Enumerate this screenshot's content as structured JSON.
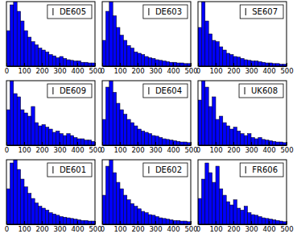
{
  "chart_data": [
    {
      "type": "histogram",
      "bins": [
        0,
        20,
        40,
        60,
        80,
        100,
        120,
        140,
        160,
        180,
        200,
        220,
        240,
        260,
        280,
        300,
        320,
        340,
        360,
        380,
        400,
        420,
        440,
        460,
        480,
        500
      ],
      "series": [
        {
          "name": "DE605",
          "color": "#0000ff",
          "values": [
            55,
            95,
            100,
            85,
            70,
            55,
            45,
            38,
            33,
            28,
            25,
            22,
            18,
            16,
            13,
            15,
            12,
            10,
            9,
            8,
            8,
            6,
            6,
            5,
            5
          ]
        }
      ],
      "xlim": [
        0,
        500
      ],
      "xticks": [
        0,
        100,
        200,
        300,
        400,
        500
      ],
      "ylim": [
        0,
        100
      ],
      "tick_labels": "x",
      "legend": "upper right"
    },
    {
      "type": "histogram",
      "bins": [
        0,
        20,
        40,
        60,
        80,
        100,
        120,
        140,
        160,
        180,
        200,
        220,
        240,
        260,
        280,
        300,
        320,
        340,
        360,
        380,
        400,
        420,
        440,
        460,
        480,
        500
      ],
      "series": [
        {
          "name": "DE603",
          "color": "#0000ff",
          "values": [
            40,
            85,
            100,
            78,
            60,
            48,
            40,
            32,
            28,
            22,
            20,
            18,
            15,
            13,
            12,
            10,
            9,
            8,
            7,
            6,
            6,
            5,
            5,
            4,
            4
          ]
        }
      ],
      "xlim": [
        0,
        500
      ],
      "xticks": [
        0,
        100,
        200,
        300,
        400,
        500
      ],
      "ylim": [
        0,
        100
      ],
      "tick_labels": "x",
      "legend": "upper right"
    },
    {
      "type": "histogram",
      "bins": [
        0,
        20,
        40,
        60,
        80,
        100,
        120,
        140,
        160,
        180,
        200,
        220,
        240,
        260,
        280,
        300,
        320,
        340,
        360,
        380,
        400,
        420,
        440,
        460,
        480,
        500
      ],
      "series": [
        {
          "name": "SE607",
          "color": "#0000ff",
          "values": [
            60,
            100,
            70,
            50,
            40,
            38,
            30,
            25,
            20,
            18,
            15,
            14,
            12,
            10,
            9,
            8,
            8,
            7,
            6,
            5,
            5,
            4,
            4,
            3,
            3
          ]
        }
      ],
      "xlim": [
        0,
        500
      ],
      "xticks": [
        0,
        100,
        200,
        300,
        400,
        500
      ],
      "ylim": [
        0,
        100
      ],
      "tick_labels": "x",
      "legend": "upper right"
    },
    {
      "type": "histogram",
      "bins": [
        0,
        20,
        40,
        60,
        80,
        100,
        120,
        140,
        160,
        180,
        200,
        220,
        240,
        260,
        280,
        300,
        320,
        340,
        360,
        380,
        400,
        420,
        440,
        460,
        480,
        500
      ],
      "series": [
        {
          "name": "DE609",
          "color": "#0000ff",
          "values": [
            55,
            100,
            80,
            75,
            55,
            50,
            45,
            60,
            35,
            30,
            32,
            28,
            25,
            20,
            22,
            18,
            15,
            18,
            15,
            12,
            10,
            10,
            8,
            8,
            6
          ]
        }
      ],
      "xlim": [
        0,
        500
      ],
      "xticks": [
        0,
        100,
        200,
        300,
        400,
        500
      ],
      "ylim": [
        0,
        100
      ],
      "tick_labels": "x",
      "legend": "upper right"
    },
    {
      "type": "histogram",
      "bins": [
        0,
        20,
        40,
        60,
        80,
        100,
        120,
        140,
        160,
        180,
        200,
        220,
        240,
        260,
        280,
        300,
        320,
        340,
        360,
        380,
        400,
        420,
        440,
        460,
        480,
        500
      ],
      "series": [
        {
          "name": "DE604",
          "color": "#0000ff",
          "values": [
            40,
            90,
            100,
            82,
            65,
            55,
            48,
            40,
            35,
            30,
            25,
            22,
            20,
            18,
            15,
            14,
            12,
            10,
            9,
            8,
            7,
            6,
            5,
            5,
            4
          ]
        }
      ],
      "xlim": [
        0,
        500
      ],
      "xticks": [
        0,
        100,
        200,
        300,
        400,
        500
      ],
      "ylim": [
        0,
        100
      ],
      "tick_labels": "x",
      "legend": "upper right"
    },
    {
      "type": "histogram",
      "bins": [
        0,
        20,
        40,
        60,
        80,
        100,
        120,
        140,
        160,
        180,
        200,
        220,
        240,
        260,
        280,
        300,
        320,
        340,
        360,
        380,
        400,
        420,
        440,
        460,
        480,
        500
      ],
      "series": [
        {
          "name": "UK608",
          "color": "#0000ff",
          "values": [
            70,
            100,
            90,
            60,
            75,
            40,
            45,
            35,
            30,
            25,
            28,
            22,
            18,
            15,
            18,
            12,
            10,
            12,
            9,
            8,
            7,
            6,
            5,
            5,
            4
          ]
        }
      ],
      "xlim": [
        0,
        500
      ],
      "xticks": [
        0,
        100,
        200,
        300,
        400,
        500
      ],
      "ylim": [
        0,
        100
      ],
      "tick_labels": "x",
      "legend": "upper right"
    },
    {
      "type": "histogram",
      "bins": [
        0,
        20,
        40,
        60,
        80,
        100,
        120,
        140,
        160,
        180,
        200,
        220,
        240,
        260,
        280,
        300,
        320,
        340,
        360,
        380,
        400,
        420,
        440,
        460,
        480,
        500
      ],
      "series": [
        {
          "name": "DE601",
          "color": "#0000ff",
          "values": [
            55,
            95,
            100,
            85,
            70,
            58,
            48,
            40,
            33,
            28,
            25,
            22,
            18,
            16,
            14,
            12,
            11,
            10,
            9,
            8,
            7,
            6,
            6,
            5,
            5
          ]
        }
      ],
      "xlim": [
        0,
        500
      ],
      "xticks": [
        0,
        100,
        200,
        300,
        400,
        500
      ],
      "ylim": [
        0,
        100
      ],
      "tick_labels": "x",
      "legend": "upper right"
    },
    {
      "type": "histogram",
      "bins": [
        0,
        20,
        40,
        60,
        80,
        100,
        120,
        140,
        160,
        180,
        200,
        220,
        240,
        260,
        280,
        300,
        320,
        340,
        360,
        380,
        400,
        420,
        440,
        460,
        480,
        500
      ],
      "series": [
        {
          "name": "DE602",
          "color": "#0000ff",
          "values": [
            45,
            90,
            100,
            80,
            65,
            55,
            45,
            38,
            32,
            28,
            24,
            20,
            18,
            15,
            14,
            12,
            10,
            9,
            8,
            7,
            6,
            6,
            5,
            5,
            4
          ]
        }
      ],
      "xlim": [
        0,
        500
      ],
      "xticks": [
        0,
        100,
        200,
        300,
        400,
        500
      ],
      "ylim": [
        0,
        100
      ],
      "tick_labels": "x",
      "legend": "upper right"
    },
    {
      "type": "histogram",
      "bins": [
        0,
        20,
        40,
        60,
        80,
        100,
        120,
        140,
        160,
        180,
        200,
        220,
        240,
        260,
        280,
        300,
        320,
        340,
        360,
        380,
        400,
        420,
        440,
        460,
        480,
        500
      ],
      "series": [
        {
          "name": "FR606",
          "color": "#0000ff",
          "values": [
            40,
            70,
            95,
            80,
            65,
            90,
            55,
            45,
            35,
            30,
            38,
            25,
            22,
            28,
            18,
            15,
            14,
            12,
            10,
            9,
            8,
            7,
            6,
            5,
            4
          ]
        }
      ],
      "xlim": [
        0,
        500
      ],
      "xticks": [
        0,
        100,
        200,
        300,
        400,
        500
      ],
      "ylim": [
        0,
        100
      ],
      "tick_labels": "x",
      "legend": "upper right"
    }
  ]
}
